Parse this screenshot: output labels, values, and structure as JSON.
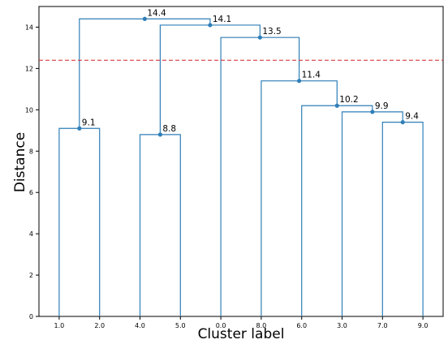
{
  "chart_data": {
    "type": "dendrogram",
    "xlabel": "Cluster label",
    "ylabel": "Distance",
    "ylim": [
      0,
      15
    ],
    "yticks": [
      0,
      2,
      4,
      6,
      8,
      10,
      12,
      14
    ],
    "threshold": 12.4,
    "leaves": [
      "1.0",
      "2.0",
      "4.0",
      "5.0",
      "0.0",
      "8.0",
      "6.0",
      "3.0",
      "7.0",
      "9.0"
    ],
    "merges": [
      {
        "left": "leaf:0",
        "right": "leaf:1",
        "height": 9.1,
        "label": "9.1"
      },
      {
        "left": "leaf:2",
        "right": "leaf:3",
        "height": 8.8,
        "label": "8.8"
      },
      {
        "left": "leaf:8",
        "right": "leaf:9",
        "height": 9.4,
        "label": "9.4"
      },
      {
        "left": "leaf:7",
        "right": "merge:2",
        "height": 9.9,
        "label": "9.9"
      },
      {
        "left": "leaf:6",
        "right": "merge:3",
        "height": 10.2,
        "label": "10.2"
      },
      {
        "left": "leaf:5",
        "right": "merge:4",
        "height": 11.4,
        "label": "11.4"
      },
      {
        "left": "leaf:4",
        "right": "merge:5",
        "height": 13.5,
        "label": "13.5"
      },
      {
        "left": "merge:1",
        "right": "merge:6",
        "height": 14.1,
        "label": "14.1"
      },
      {
        "left": "merge:0",
        "right": "merge:7",
        "height": 14.4,
        "label": "14.4"
      }
    ],
    "grid": false
  },
  "colors": {
    "link": "#2f7fb8",
    "threshold": "#d62728",
    "axis": "#000000"
  }
}
